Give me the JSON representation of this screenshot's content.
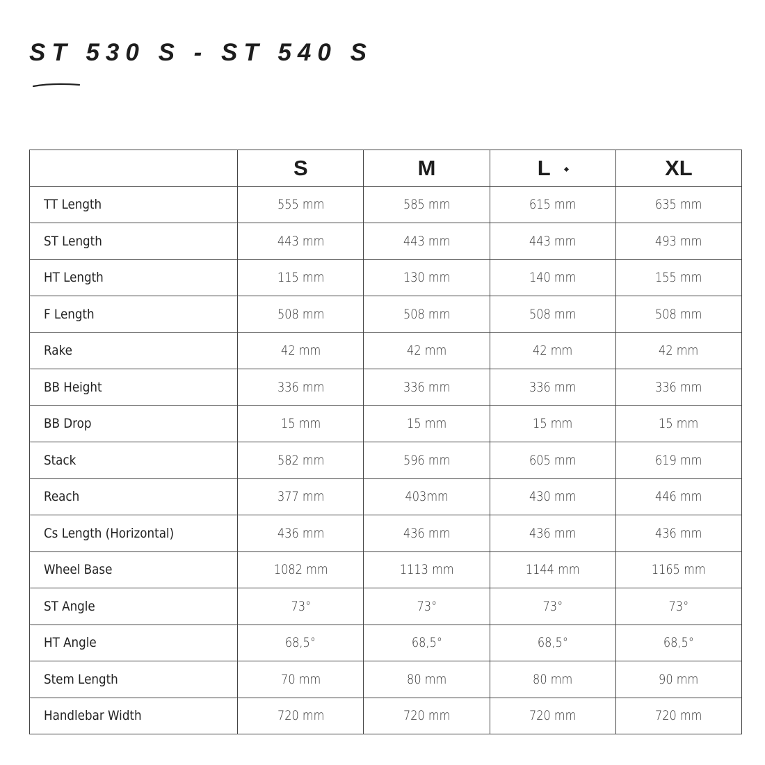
{
  "title": "ST 530 S - ST 540 S",
  "table": {
    "headers": [
      "",
      "S",
      "M",
      "L",
      "XL"
    ],
    "rows": [
      {
        "label": "TT Length",
        "values": [
          "555 mm",
          "585 mm",
          "615 mm",
          "635 mm"
        ]
      },
      {
        "label": "ST Length",
        "values": [
          "443 mm",
          "443 mm",
          "443 mm",
          "493 mm"
        ]
      },
      {
        "label": "HT Length",
        "values": [
          "115 mm",
          "130 mm",
          "140 mm",
          "155 mm"
        ]
      },
      {
        "label": "F Length",
        "values": [
          "508 mm",
          "508 mm",
          "508 mm",
          "508 mm"
        ]
      },
      {
        "label": "Rake",
        "values": [
          "42 mm",
          "42 mm",
          "42 mm",
          "42 mm"
        ]
      },
      {
        "label": "BB Height",
        "values": [
          "336 mm",
          "336 mm",
          "336 mm",
          "336 mm"
        ]
      },
      {
        "label": "BB Drop",
        "values": [
          "15 mm",
          "15 mm",
          "15 mm",
          "15 mm"
        ]
      },
      {
        "label": "Stack",
        "values": [
          "582 mm",
          "596 mm",
          "605 mm",
          "619 mm"
        ]
      },
      {
        "label": "Reach",
        "values": [
          "377 mm",
          "403mm",
          "430 mm",
          "446 mm"
        ]
      },
      {
        "label": "Cs Length (Horizontal)",
        "values": [
          "436 mm",
          "436 mm",
          "436 mm",
          "436 mm"
        ]
      },
      {
        "label": "Wheel Base",
        "values": [
          "1082 mm",
          "1113 mm",
          "1144 mm",
          "1165 mm"
        ]
      },
      {
        "label": "ST Angle",
        "values": [
          "73°",
          "73°",
          "73°",
          "73°"
        ]
      },
      {
        "label": "HT Angle",
        "values": [
          "68,5°",
          "68,5°",
          "68,5°",
          "68,5°"
        ]
      },
      {
        "label": "Stem Length",
        "values": [
          "70 mm",
          "80 mm",
          "80 mm",
          "90 mm"
        ]
      },
      {
        "label": "Handlebar Width",
        "values": [
          "720 mm",
          "720 mm",
          "720 mm",
          "720 mm"
        ]
      }
    ]
  }
}
